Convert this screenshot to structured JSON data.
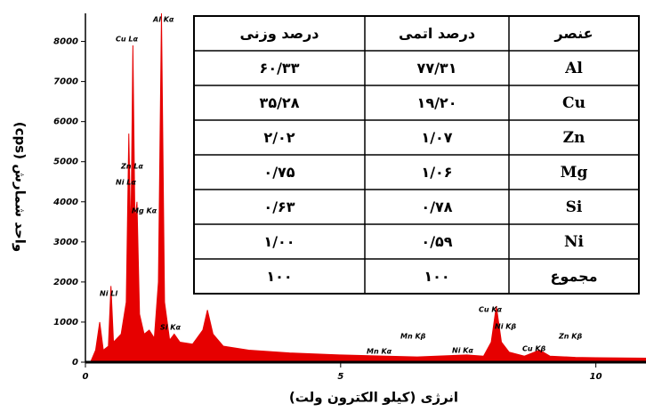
{
  "chart_data": {
    "type": "area",
    "x_label": "انرژی (کیلو الکترون ولت)",
    "y_label": "واحد شمارش (cps)",
    "color": "#e60000",
    "xlim": [
      0,
      11
    ],
    "xticks": [
      0,
      5,
      10
    ],
    "ylim": [
      0,
      8700
    ],
    "yticks": [
      0,
      1000,
      2000,
      3000,
      4000,
      5000,
      6000,
      7000,
      8000
    ],
    "x": [
      0.1,
      0.2,
      0.28,
      0.35,
      0.45,
      0.5,
      0.55,
      0.7,
      0.8,
      0.85,
      0.89,
      0.93,
      0.97,
      1.01,
      1.06,
      1.15,
      1.25,
      1.35,
      1.43,
      1.49,
      1.55,
      1.65,
      1.74,
      1.85,
      2.1,
      2.3,
      2.39,
      2.5,
      2.7,
      3.2,
      4,
      5,
      5.9,
      6.5,
      7.47,
      7.8,
      7.95,
      8.05,
      8.15,
      8.3,
      8.6,
      8.9,
      9.1,
      9.6,
      10,
      11
    ],
    "values": [
      0,
      300,
      1000,
      300,
      400,
      1900,
      500,
      700,
      1500,
      5700,
      3000,
      7900,
      3500,
      4000,
      1200,
      700,
      800,
      600,
      2000,
      8700,
      1500,
      550,
      700,
      500,
      450,
      800,
      1300,
      700,
      400,
      300,
      230,
      180,
      150,
      130,
      180,
      150,
      500,
      1400,
      500,
      250,
      150,
      300,
      150,
      120,
      110,
      100
    ],
    "annotations": [
      "Cu Lα",
      "Al Kα",
      "Zn Lα",
      "Ni Lα",
      "Mg Kα",
      "Ni Ll",
      "Si Kα",
      "Mn Kα",
      "Mn Kβ",
      "Ni Kα",
      "Cu Kα",
      "Ni Kβ",
      "Cu Kβ",
      "Zn Kβ"
    ]
  },
  "table": {
    "header": [
      "درصد وزنی",
      "درصد اتمی",
      "عنصر"
    ],
    "rows": [
      [
        "۶۰/۳۳",
        "۷۷/۳۱",
        "Al"
      ],
      [
        "۳۵/۲۸",
        "۱۹/۲۰",
        "Cu"
      ],
      [
        "۲/۰۲",
        "۱/۰۷",
        "Zn"
      ],
      [
        "۰/۷۵",
        "۱/۰۶",
        "Mg"
      ],
      [
        "۰/۶۳",
        "۰/۷۸",
        "Si"
      ],
      [
        "۱/۰۰",
        "۰/۵۹",
        "Ni"
      ],
      [
        "۱۰۰",
        "۱۰۰",
        "مجموع"
      ]
    ]
  }
}
